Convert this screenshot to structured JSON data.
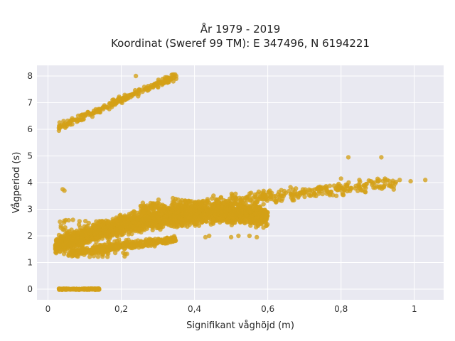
{
  "chart_data": {
    "type": "scatter",
    "title_line1": "År 1979 - 2019",
    "title_line2": "Koordinat (Sweref 99 TM): E 347496, N 6194221",
    "xlabel": "Signifikant våghöjd (m)",
    "ylabel": "Vågperiod (s)",
    "xlim": [
      -0.03,
      1.08
    ],
    "ylim": [
      -0.4,
      8.4
    ],
    "x_ticks": [
      0,
      0.2,
      0.4,
      0.6,
      0.8,
      1
    ],
    "x_tick_labels": [
      "0",
      "0,2",
      "0,4",
      "0,6",
      "0,8",
      "1"
    ],
    "y_ticks": [
      0,
      1,
      2,
      3,
      4,
      5,
      6,
      7,
      8
    ],
    "y_tick_labels": [
      "0",
      "1",
      "2",
      "3",
      "4",
      "5",
      "6",
      "7",
      "8"
    ],
    "grid": true,
    "legend": "none",
    "colors": {
      "marker": "#d4a017",
      "plot_bg": "#e9e9f1",
      "grid": "#ffffff"
    },
    "clusters": [
      {
        "n": 140,
        "x": [
          0.03,
          0.14
        ],
        "y": [
          -0.02,
          0.02
        ]
      },
      {
        "n": 2600,
        "x": [
          0.02,
          0.6
        ],
        "yfn": "main"
      },
      {
        "n": 420,
        "x": [
          0.25,
          0.95
        ],
        "yfn": "upper"
      },
      {
        "n": 380,
        "x": [
          0.06,
          0.35
        ],
        "yfn": "lower"
      },
      {
        "n": 220,
        "x": [
          0.03,
          0.35
        ],
        "yfn": "swell"
      },
      {
        "n": 180,
        "x": [
          0.03,
          0.22
        ],
        "y": [
          1.2,
          2.6
        ]
      }
    ],
    "outliers": [
      [
        0.04,
        3.75
      ],
      [
        0.045,
        3.7
      ],
      [
        0.24,
        8.0
      ],
      [
        0.34,
        8.05
      ],
      [
        0.35,
        7.9
      ],
      [
        0.32,
        7.95
      ],
      [
        0.82,
        4.95
      ],
      [
        0.91,
        4.95
      ],
      [
        0.52,
        2.0
      ],
      [
        0.55,
        2.0
      ],
      [
        0.57,
        1.95
      ],
      [
        0.5,
        1.95
      ],
      [
        1.03,
        4.1
      ],
      [
        0.99,
        4.05
      ],
      [
        0.96,
        4.1
      ],
      [
        0.92,
        4.15
      ],
      [
        0.88,
        4.05
      ],
      [
        0.44,
        2.0
      ],
      [
        0.43,
        1.95
      ],
      [
        0.03,
        5.95
      ],
      [
        0.03,
        6.05
      ],
      [
        0.035,
        6.1
      ],
      [
        0.85,
        4.1
      ],
      [
        0.8,
        4.15
      ]
    ]
  }
}
